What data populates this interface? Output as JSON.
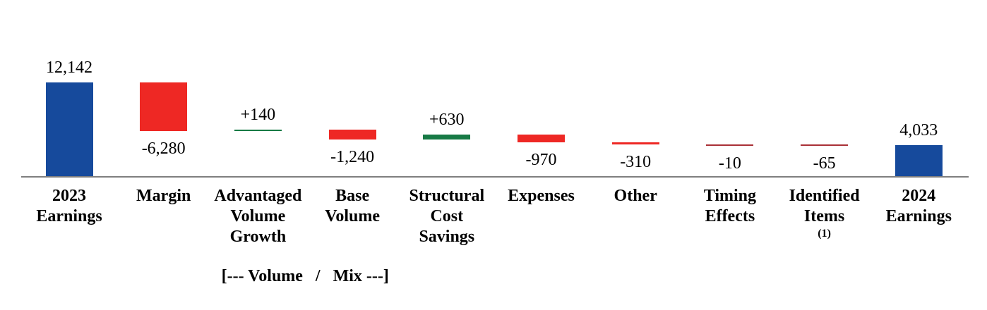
{
  "chart_data": {
    "type": "bar",
    "subtype": "waterfall",
    "title": "",
    "categories": [
      "2023 Earnings",
      "Margin",
      "Advantaged Volume Growth",
      "Base Volume",
      "Structural Cost Savings",
      "Expenses",
      "Other",
      "Timing Effects",
      "Identified Items (1)",
      "2024 Earnings"
    ],
    "values": [
      12142,
      -6280,
      140,
      -1240,
      630,
      -970,
      -310,
      -10,
      -65,
      4033
    ],
    "ylim": [
      0,
      12142
    ],
    "grid": false,
    "legend": false,
    "bars": [
      {
        "id": "2023-earnings",
        "category_lines": [
          "2023",
          "Earnings"
        ],
        "value": 12142,
        "display": "12,142",
        "kind": "total",
        "label_side": "above"
      },
      {
        "id": "margin",
        "category_lines": [
          "Margin"
        ],
        "value": -6280,
        "display": "-6,280",
        "kind": "delta",
        "label_side": "below"
      },
      {
        "id": "advantaged-volume-growth",
        "category_lines": [
          "Advantaged",
          "Volume",
          "Growth"
        ],
        "value": 140,
        "display": "+140",
        "kind": "delta",
        "label_side": "above"
      },
      {
        "id": "base-volume",
        "category_lines": [
          "Base",
          "Volume"
        ],
        "value": -1240,
        "display": "-1,240",
        "kind": "delta",
        "label_side": "below"
      },
      {
        "id": "structural-cost-savings",
        "category_lines": [
          "Structural",
          "Cost",
          "Savings"
        ],
        "value": 630,
        "display": "+630",
        "kind": "delta",
        "label_side": "above"
      },
      {
        "id": "expenses",
        "category_lines": [
          "Expenses"
        ],
        "value": -970,
        "display": "-970",
        "kind": "delta",
        "label_side": "below"
      },
      {
        "id": "other",
        "category_lines": [
          "Other"
        ],
        "value": -310,
        "display": "-310",
        "kind": "delta",
        "label_side": "below"
      },
      {
        "id": "timing-effects",
        "category_lines": [
          "Timing",
          "Effects"
        ],
        "value": -10,
        "display": "-10",
        "kind": "delta",
        "label_side": "below"
      },
      {
        "id": "identified-items",
        "category_lines": [
          "Identified",
          "Items"
        ],
        "footnote": "(1)",
        "value": -65,
        "display": "-65",
        "kind": "delta",
        "label_side": "below"
      },
      {
        "id": "2024-earnings",
        "category_lines": [
          "2024",
          "Earnings"
        ],
        "value": 4033,
        "display": "4,033",
        "kind": "total",
        "label_side": "above"
      }
    ],
    "group_annotation": {
      "text": "[--- Volume   /   Mix ---]",
      "from_category": "Advantaged Volume Growth",
      "to_category": "Base Volume"
    },
    "colors": {
      "total": "#164A9C",
      "increase": "#177A45",
      "decrease": "#EE2824",
      "decrease_thin": "#A93036",
      "axis": "#7F7F7F",
      "text": "#000000"
    }
  }
}
